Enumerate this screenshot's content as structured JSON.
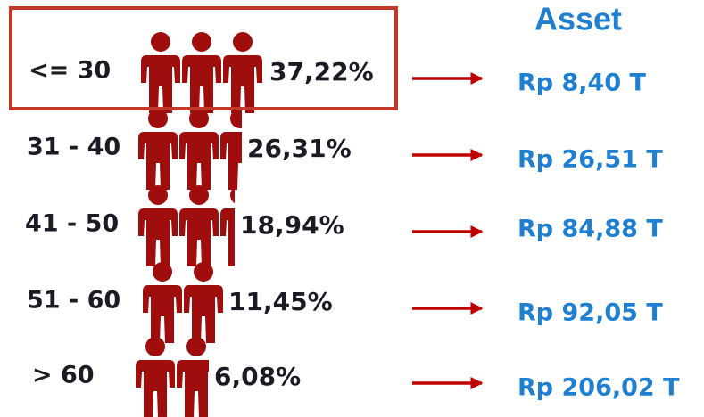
{
  "title": "Asset",
  "rows": [
    {
      "age": "<= 30",
      "share": "37,22%",
      "asset": "Rp 8,40 T"
    },
    {
      "age": "31 - 40",
      "share": "26,31%",
      "asset": "Rp 26,51 T"
    },
    {
      "age": "41 - 50",
      "share": "18,94%",
      "asset": "Rp 84,88 T"
    },
    {
      "age": "51 - 60",
      "share": "11,45%",
      "asset": "Rp 92,05 T"
    },
    {
      "age": "> 60",
      "share": "6,08%",
      "asset": "Rp 206,02 T"
    }
  ]
}
